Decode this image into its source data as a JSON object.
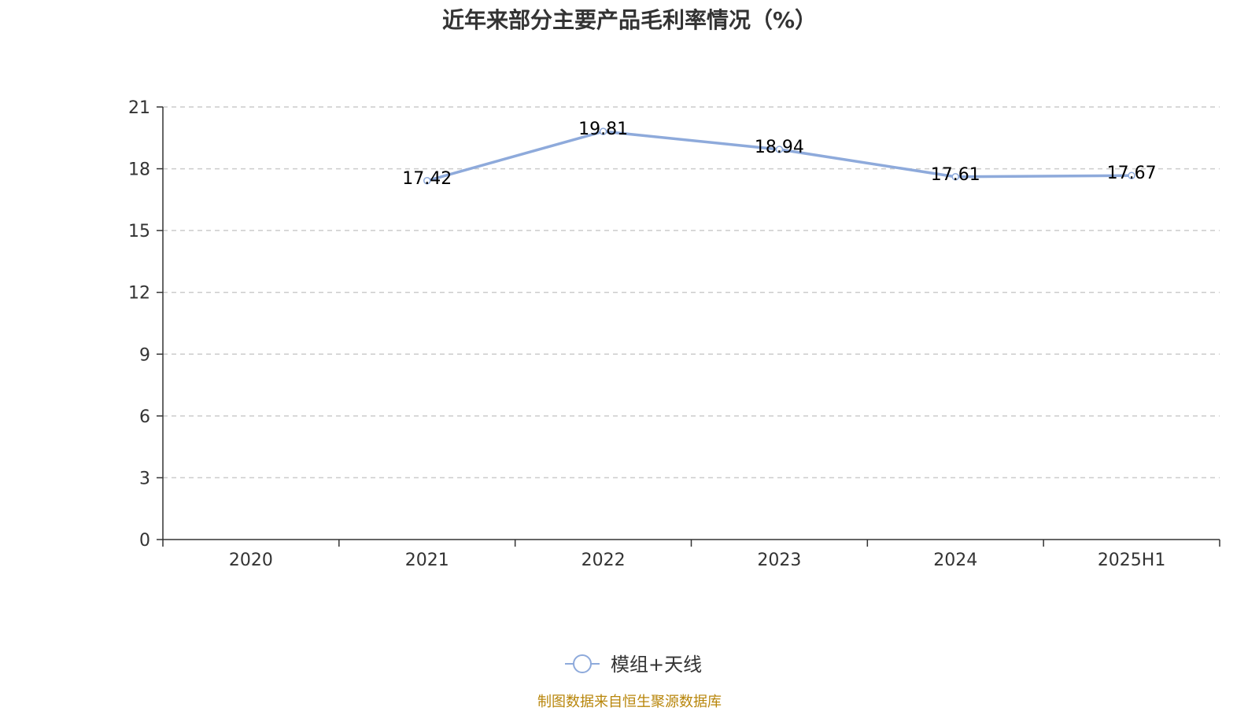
{
  "chart_data": {
    "type": "line",
    "title": "近年来部分主要产品毛利率情况（%）",
    "categories": [
      "2020",
      "2021",
      "2022",
      "2023",
      "2024",
      "2025H1"
    ],
    "series": [
      {
        "name": "模组+天线",
        "values": [
          null,
          17.42,
          19.81,
          18.94,
          17.61,
          17.67
        ],
        "color": "#8eaadb"
      }
    ],
    "y_ticks": [
      "0",
      "3",
      "6",
      "9",
      "12",
      "15",
      "18",
      "21"
    ],
    "ylim": [
      0,
      21
    ],
    "grid": true,
    "legend_position": "bottom-center",
    "xlabel": "",
    "ylabel": ""
  },
  "footer": {
    "source": "制图数据来自恒生聚源数据库"
  },
  "colors": {
    "line": "#8eaadb",
    "axis": "#333333",
    "grid": "#cccccc",
    "source": "#b8860b"
  }
}
